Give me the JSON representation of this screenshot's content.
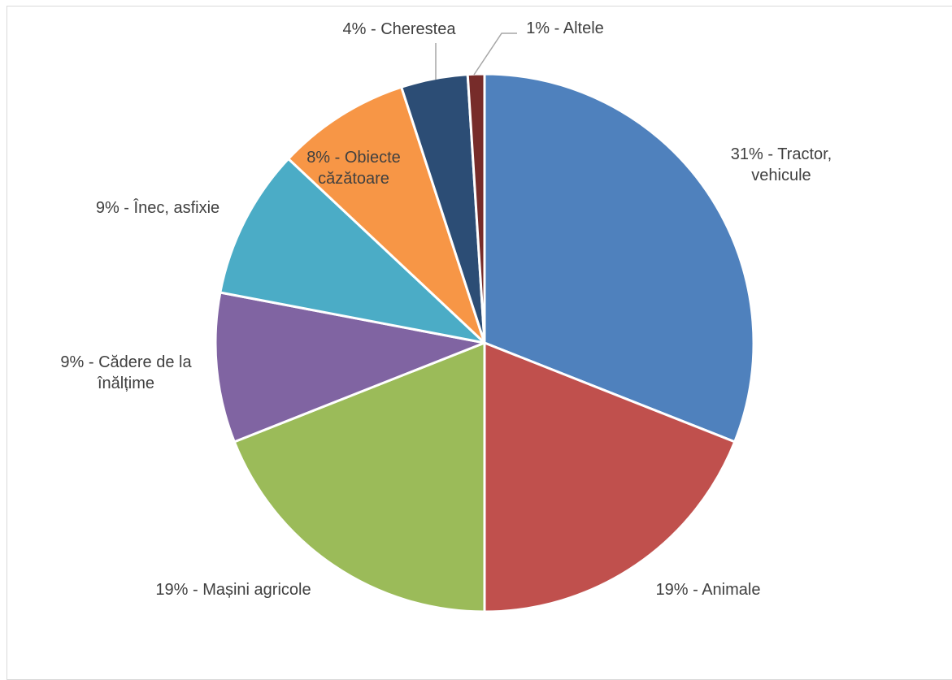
{
  "chart_data": {
    "type": "pie",
    "title": "",
    "start_angle_deg": 0,
    "direction": "clockwise",
    "slice_border_color": "#ffffff",
    "leader_line_color": "#a6a6a6",
    "label_color": "#404040",
    "slices": [
      {
        "label_lines": [
          "31% - Tractor,",
          "vehicule"
        ],
        "value": 31,
        "color": "#4f81bd"
      },
      {
        "label_lines": [
          "19% - Animale"
        ],
        "value": 19,
        "color": "#c0504d"
      },
      {
        "label_lines": [
          "19% - Mașini agricole"
        ],
        "value": 19,
        "color": "#9bbb59"
      },
      {
        "label_lines": [
          "9% - Cădere de la",
          "înălțime"
        ],
        "value": 9,
        "color": "#8064a2"
      },
      {
        "label_lines": [
          "9% - Înec, asfixie"
        ],
        "value": 9,
        "color": "#4bacc6"
      },
      {
        "label_lines": [
          "8% - Obiecte",
          "căzătoare"
        ],
        "value": 8,
        "color": "#f79646"
      },
      {
        "label_lines": [
          "4% - Cherestea"
        ],
        "value": 4,
        "color": "#2c4d75"
      },
      {
        "label_lines": [
          "1% - Altele"
        ],
        "value": 1,
        "color": "#772c2a"
      }
    ]
  }
}
